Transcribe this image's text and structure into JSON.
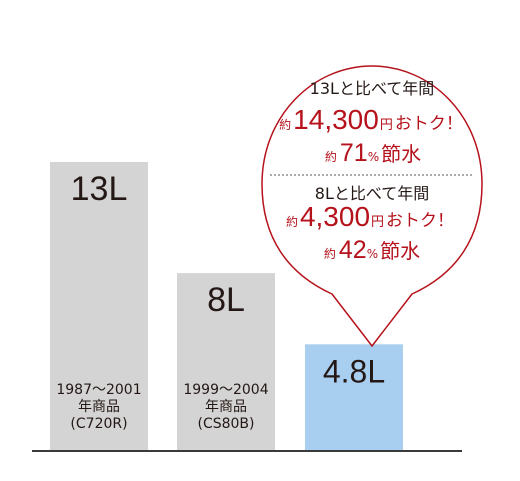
{
  "chart_data": {
    "type": "bar",
    "categories": [
      "1987〜2001 年商品 (C720R)",
      "1999〜2004 年商品 (CS80B)",
      ""
    ],
    "values": [
      13,
      8,
      4.8
    ],
    "unit": "L",
    "ylim": [
      0,
      15
    ],
    "colors": [
      "#d4d4d4",
      "#d4d4d4",
      "#a9cff0"
    ],
    "axis_color": "#3a3a3a",
    "value_labels": [
      "13L",
      "8L",
      "4.8L"
    ],
    "captions": [
      [
        "1987〜2001",
        "年商品",
        "(C720R)"
      ],
      [
        "1999〜2004",
        "年商品",
        "(CS80B)"
      ],
      []
    ],
    "grid": false,
    "legend": "none"
  },
  "callout": {
    "border_color": "#b5121b",
    "section1": {
      "head": "13Lと比べて年間",
      "saving_prefix": "約",
      "saving_amount": "14,300",
      "saving_unit": "円",
      "saving_suffix": "おトク！",
      "water_prefix": "約",
      "water_value": "71",
      "water_unit": "%",
      "water_suffix": "節水"
    },
    "section2": {
      "head": "8Lと比べて年間",
      "saving_prefix": "約",
      "saving_amount": "4,300",
      "saving_unit": "円",
      "saving_suffix": "おトク！",
      "water_prefix": "約",
      "water_value": "42",
      "water_unit": "%",
      "water_suffix": "節水"
    }
  }
}
